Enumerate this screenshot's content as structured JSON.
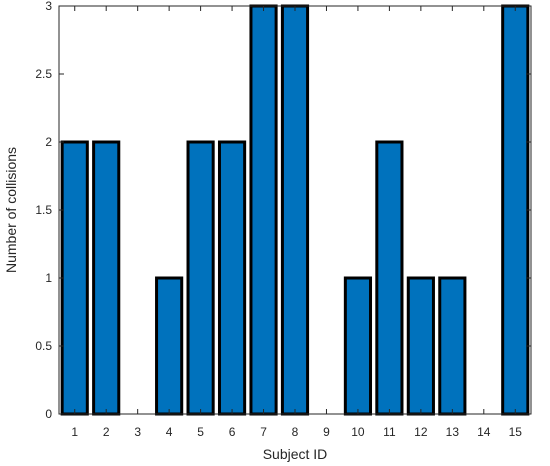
{
  "chart_data": {
    "type": "bar",
    "title": "",
    "xlabel": "Subject ID",
    "ylabel": "Number of collisions",
    "categories": [
      "1",
      "2",
      "3",
      "4",
      "5",
      "6",
      "7",
      "8",
      "9",
      "10",
      "11",
      "12",
      "13",
      "14",
      "15"
    ],
    "values": [
      2,
      2,
      0,
      1,
      2,
      2,
      3,
      3,
      0,
      1,
      2,
      1,
      1,
      0,
      3
    ],
    "ylim": [
      0,
      3
    ],
    "yticks": [
      "0",
      "0.5",
      "1",
      "1.5",
      "2",
      "2.5",
      "3"
    ],
    "grid": false,
    "bar_color": "#0072BD",
    "bar_edge_color": "#000000",
    "axis_color": "#262626"
  }
}
